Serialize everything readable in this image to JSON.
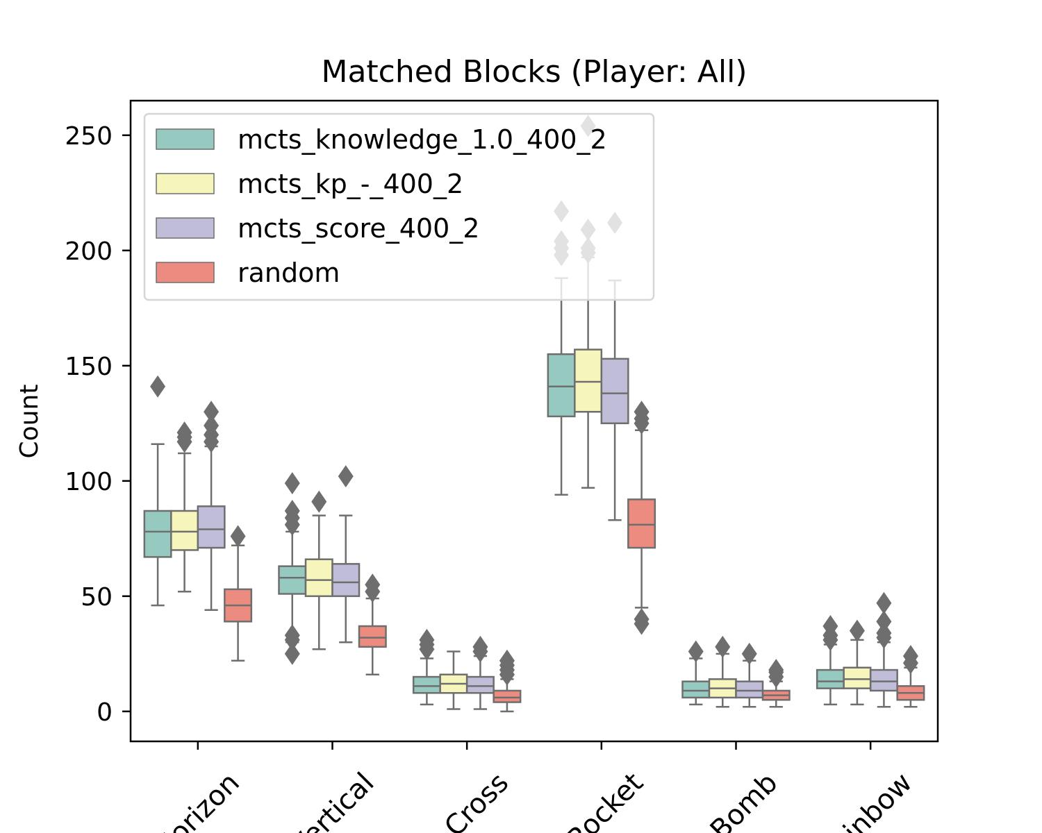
{
  "chart_data": {
    "type": "box",
    "title": "Matched Blocks (Player: All)",
    "xlabel": "",
    "ylabel": "Count",
    "ylim": [
      -13,
      265
    ],
    "yticks": [
      0,
      50,
      100,
      150,
      200,
      250
    ],
    "categories": [
      "Horizon",
      "Vertical",
      "Cross",
      "Rocket",
      "Bomb",
      "Rainbow"
    ],
    "legend_position": "upper-left",
    "grid": false,
    "series": [
      {
        "name": "mcts_knowledge_1.0_400_2",
        "color": "#96cac1",
        "boxes": [
          {
            "whislo": 46,
            "q1": 67,
            "med": 78,
            "q3": 87,
            "whishi": 116,
            "fliers": [
              141
            ]
          },
          {
            "whislo": 30,
            "q1": 51,
            "med": 58,
            "q3": 63,
            "whishi": 78,
            "fliers": [
              25,
              31,
              33,
              81,
              84,
              87,
              99
            ]
          },
          {
            "whislo": 3,
            "q1": 8,
            "med": 11,
            "q3": 15,
            "whishi": 23,
            "fliers": [
              27,
              29,
              31
            ]
          },
          {
            "whislo": 94,
            "q1": 128,
            "med": 141,
            "q3": 155,
            "whishi": 188,
            "fliers": [
              198,
              201,
              204,
              217
            ]
          },
          {
            "whislo": 3,
            "q1": 6,
            "med": 9,
            "q3": 13,
            "whishi": 23,
            "fliers": [
              26
            ]
          },
          {
            "whislo": 3,
            "q1": 10,
            "med": 13,
            "q3": 18,
            "whishi": 29,
            "fliers": [
              31,
              33,
              37
            ]
          }
        ]
      },
      {
        "name": "mcts_kp_-_400_2",
        "color": "#f6f6bc",
        "boxes": [
          {
            "whislo": 52,
            "q1": 70,
            "med": 78,
            "q3": 87,
            "whishi": 112,
            "fliers": [
              117,
              119,
              121
            ]
          },
          {
            "whislo": 27,
            "q1": 50,
            "med": 57,
            "q3": 66,
            "whishi": 85,
            "fliers": [
              91
            ]
          },
          {
            "whislo": 1,
            "q1": 8,
            "med": 12,
            "q3": 16,
            "whishi": 26,
            "fliers": []
          },
          {
            "whislo": 97,
            "q1": 130,
            "med": 143,
            "q3": 157,
            "whishi": 197,
            "fliers": [
              199,
              201,
              209,
              254
            ]
          },
          {
            "whislo": 2,
            "q1": 6,
            "med": 10,
            "q3": 14,
            "whishi": 25,
            "fliers": [
              28
            ]
          },
          {
            "whislo": 3,
            "q1": 10,
            "med": 14,
            "q3": 19,
            "whishi": 31,
            "fliers": [
              35
            ]
          }
        ]
      },
      {
        "name": "mcts_score_400_2",
        "color": "#c0bdd9",
        "boxes": [
          {
            "whislo": 44,
            "q1": 71,
            "med": 79,
            "q3": 89,
            "whishi": 115,
            "fliers": [
              117,
              120,
              124,
              130
            ]
          },
          {
            "whislo": 30,
            "q1": 50,
            "med": 56,
            "q3": 64,
            "whishi": 85,
            "fliers": [
              102
            ]
          },
          {
            "whislo": 1,
            "q1": 8,
            "med": 11,
            "q3": 15,
            "whishi": 24,
            "fliers": [
              26,
              28
            ]
          },
          {
            "whislo": 83,
            "q1": 125,
            "med": 138,
            "q3": 153,
            "whishi": 187,
            "fliers": [
              212
            ]
          },
          {
            "whislo": 2,
            "q1": 6,
            "med": 9,
            "q3": 13,
            "whishi": 22,
            "fliers": [
              25
            ]
          },
          {
            "whislo": 2,
            "q1": 9,
            "med": 13,
            "q3": 18,
            "whishi": 30,
            "fliers": [
              32,
              34,
              39,
              47
            ]
          }
        ]
      },
      {
        "name": "random",
        "color": "#ec8b7f",
        "boxes": [
          {
            "whislo": 22,
            "q1": 39,
            "med": 46,
            "q3": 53,
            "whishi": 72,
            "fliers": [
              76
            ]
          },
          {
            "whislo": 16,
            "q1": 28,
            "med": 32,
            "q3": 37,
            "whishi": 49,
            "fliers": [
              52,
              55
            ]
          },
          {
            "whislo": 0,
            "q1": 4,
            "med": 6,
            "q3": 9,
            "whishi": 14,
            "fliers": [
              16,
              18,
              20,
              22
            ]
          },
          {
            "whislo": 45,
            "q1": 71,
            "med": 81,
            "q3": 92,
            "whishi": 122,
            "fliers": [
              38,
              40,
              125,
              127,
              130
            ]
          },
          {
            "whislo": 2,
            "q1": 5,
            "med": 7,
            "q3": 9,
            "whishi": 13,
            "fliers": [
              15,
              17,
              18
            ]
          },
          {
            "whislo": 2,
            "q1": 5,
            "med": 8,
            "q3": 11,
            "whishi": 19,
            "fliers": [
              21,
              24
            ]
          }
        ]
      }
    ]
  }
}
